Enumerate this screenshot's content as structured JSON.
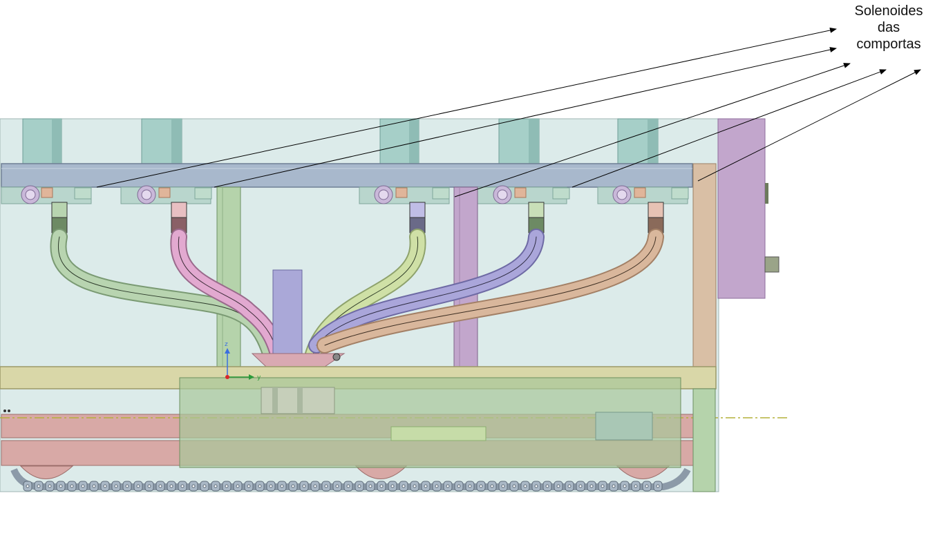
{
  "annotation": {
    "lines": [
      "Solenoides",
      "das",
      "comportas"
    ]
  },
  "triad": {
    "z": "z",
    "y": "y"
  },
  "colors": {
    "background_panel": "#dcebea",
    "beam": "#a8b8cc",
    "hose_green": "#b8d4b0",
    "hose_pink": "#e2a9d0",
    "hose_lightgreen": "#cfe0a6",
    "hose_purple": "#aaa6da",
    "hose_tan": "#d9b79c",
    "cylinder": "#a6cfc8",
    "frame_yellow": "#d9d7a8",
    "rail_pink": "#d8a9a6",
    "enclosure_purple": "#c2a6cc",
    "track": "#9fb0c0"
  },
  "hoses": [
    {
      "name": "hose-green",
      "color": "#b8d4b0"
    },
    {
      "name": "hose-pink",
      "color": "#e2a9d0"
    },
    {
      "name": "hose-lightgreen",
      "color": "#cfe0a6"
    },
    {
      "name": "hose-purple",
      "color": "#aaa6da"
    },
    {
      "name": "hose-tan",
      "color": "#d9b79c"
    }
  ]
}
